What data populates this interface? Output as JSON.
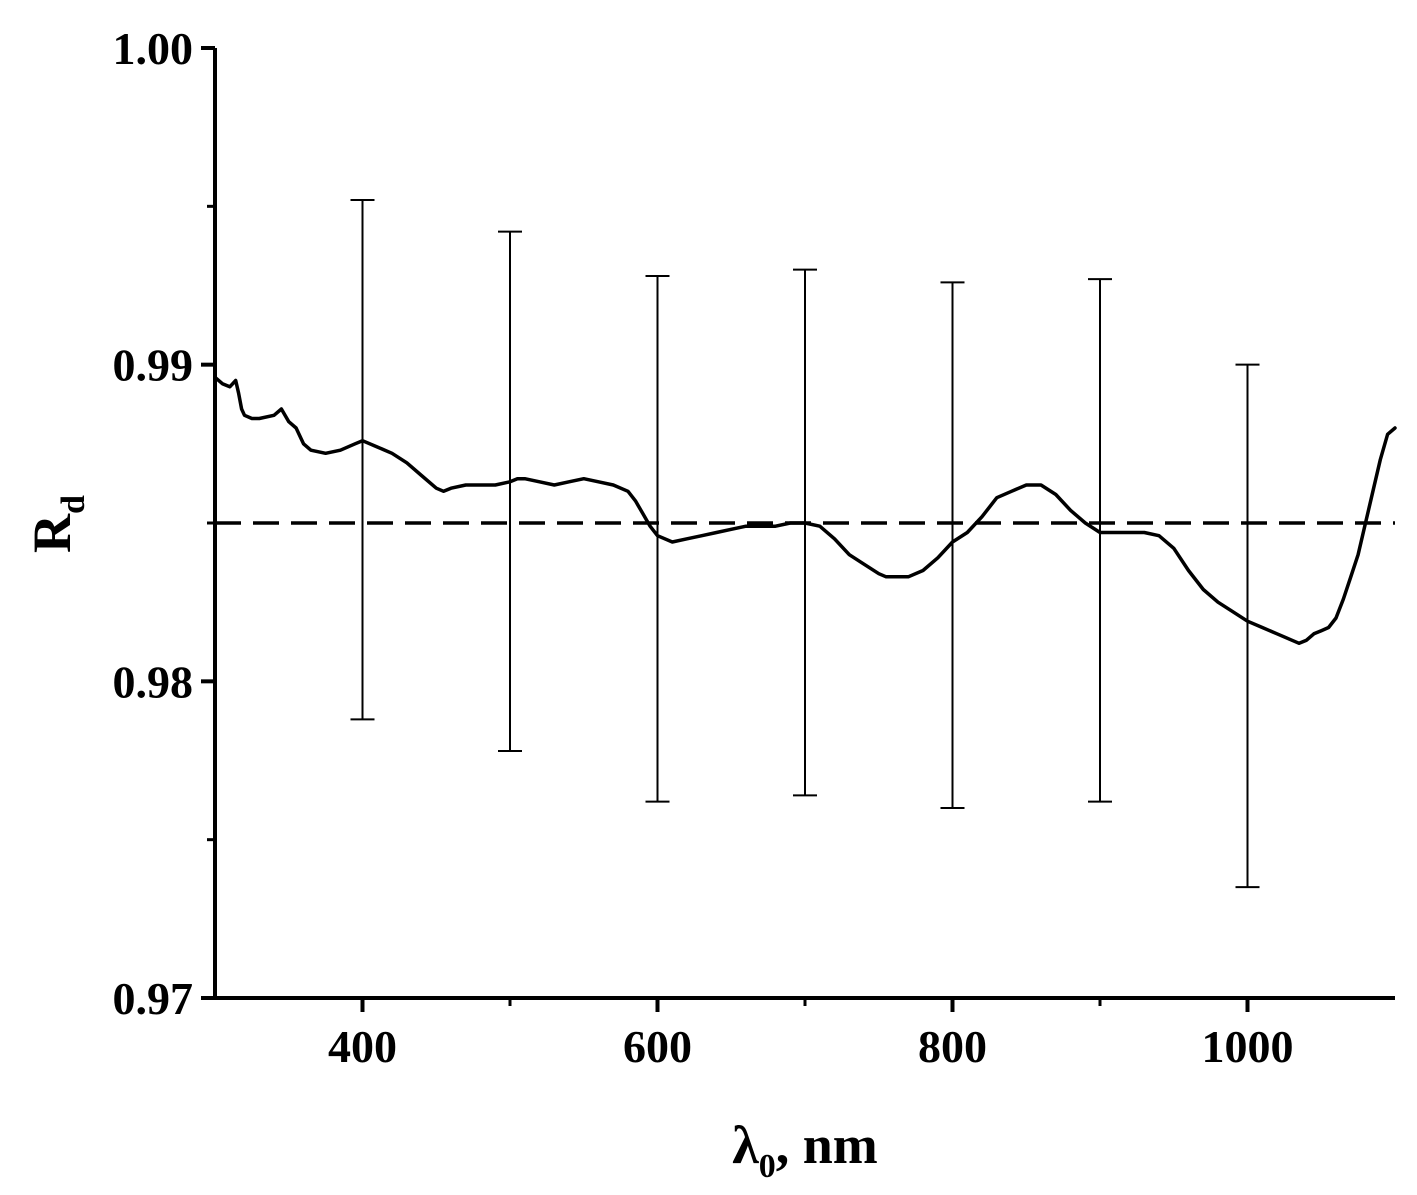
{
  "chart_data": {
    "type": "line",
    "xlabel": {
      "main": "λ",
      "sub": "0",
      "suffix": ", nm"
    },
    "ylabel": {
      "main": "R",
      "sub": "d"
    },
    "xlim": [
      300,
      1100
    ],
    "ylim": [
      0.97,
      1.0
    ],
    "x_major_ticks": [
      400,
      600,
      800,
      1000
    ],
    "x_minor_ticks": [
      500,
      700,
      900
    ],
    "x_tick_labels": [
      "400",
      "600",
      "800",
      "1000"
    ],
    "y_major_ticks": [
      0.97,
      0.98,
      0.99,
      1.0
    ],
    "y_minor_ticks": [
      0.975,
      0.985,
      0.995
    ],
    "y_tick_labels": [
      "0.97",
      "0.98",
      "0.99",
      "1.00"
    ],
    "grid": false,
    "legend": null,
    "colors": {
      "line": "#000000",
      "axis": "#000000",
      "reference": "#000000"
    },
    "reference_line": {
      "y": 0.985,
      "style": "dashed"
    },
    "series": [
      {
        "style": "solid",
        "x": [
          300,
          305,
          310,
          314,
          316,
          318,
          320,
          325,
          330,
          340,
          345,
          350,
          355,
          360,
          365,
          375,
          385,
          395,
          400,
          410,
          420,
          430,
          440,
          450,
          455,
          460,
          470,
          480,
          490,
          500,
          505,
          510,
          520,
          530,
          540,
          550,
          560,
          570,
          580,
          585,
          590,
          595,
          600,
          610,
          620,
          630,
          640,
          650,
          660,
          670,
          680,
          690,
          700,
          710,
          720,
          730,
          740,
          750,
          755,
          760,
          770,
          780,
          790,
          800,
          810,
          820,
          830,
          840,
          850,
          855,
          860,
          870,
          880,
          890,
          900,
          910,
          920,
          930,
          940,
          950,
          960,
          970,
          980,
          990,
          1000,
          1010,
          1020,
          1030,
          1035,
          1040,
          1045,
          1050,
          1055,
          1060,
          1065,
          1070,
          1075,
          1080,
          1085,
          1090,
          1095,
          1100
        ],
        "y": [
          0.9896,
          0.9894,
          0.9893,
          0.9895,
          0.9891,
          0.9886,
          0.9884,
          0.9883,
          0.9883,
          0.9884,
          0.9886,
          0.9882,
          0.988,
          0.9875,
          0.9873,
          0.9872,
          0.9873,
          0.9875,
          0.9876,
          0.9874,
          0.9872,
          0.9869,
          0.9865,
          0.9861,
          0.986,
          0.9861,
          0.9862,
          0.9862,
          0.9862,
          0.9863,
          0.9864,
          0.9864,
          0.9863,
          0.9862,
          0.9863,
          0.9864,
          0.9863,
          0.9862,
          0.986,
          0.9857,
          0.9853,
          0.9849,
          0.9846,
          0.9844,
          0.9845,
          0.9846,
          0.9847,
          0.9848,
          0.9849,
          0.9849,
          0.9849,
          0.985,
          0.985,
          0.9849,
          0.9845,
          0.984,
          0.9837,
          0.9834,
          0.9833,
          0.9833,
          0.9833,
          0.9835,
          0.9839,
          0.9844,
          0.9847,
          0.9852,
          0.9858,
          0.986,
          0.9862,
          0.9862,
          0.9862,
          0.9859,
          0.9854,
          0.985,
          0.9847,
          0.9847,
          0.9847,
          0.9847,
          0.9846,
          0.9842,
          0.9835,
          0.9829,
          0.9825,
          0.9822,
          0.9819,
          0.9817,
          0.9815,
          0.9813,
          0.9812,
          0.9813,
          0.9815,
          0.9816,
          0.9817,
          0.982,
          0.9826,
          0.9833,
          0.984,
          0.985,
          0.986,
          0.987,
          0.9878,
          0.988
        ]
      }
    ],
    "error_bars": [
      {
        "x": 400,
        "low": 0.9788,
        "high": 0.9952
      },
      {
        "x": 500,
        "low": 0.9778,
        "high": 0.9942
      },
      {
        "x": 600,
        "low": 0.9762,
        "high": 0.9928
      },
      {
        "x": 700,
        "low": 0.9764,
        "high": 0.993
      },
      {
        "x": 800,
        "low": 0.976,
        "high": 0.9926
      },
      {
        "x": 900,
        "low": 0.9762,
        "high": 0.9927
      },
      {
        "x": 1000,
        "low": 0.9735,
        "high": 0.99
      }
    ]
  }
}
